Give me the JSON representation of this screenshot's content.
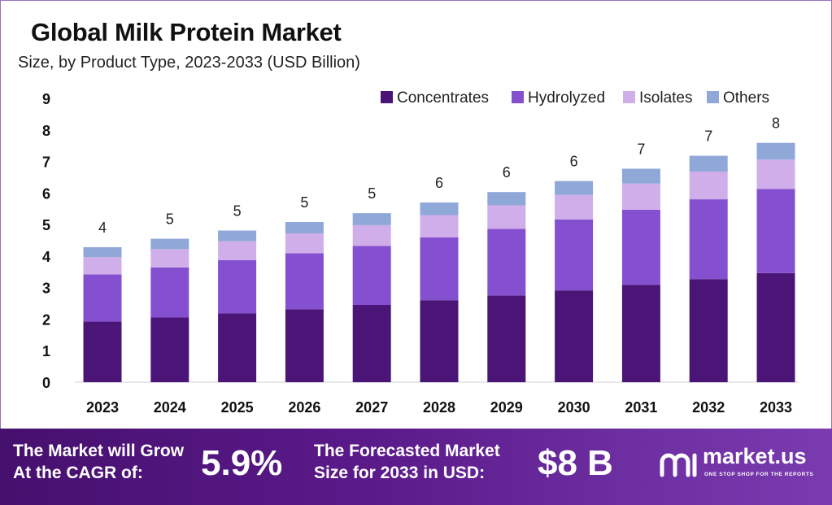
{
  "chart_data": {
    "type": "bar",
    "stacked": true,
    "title": "Global Milk Protein Market",
    "subtitle": "Size, by Product Type, 2023-2033 (USD Billion)",
    "xlabel": "",
    "ylabel": "",
    "ylim": [
      0,
      9
    ],
    "yticks": [
      "0",
      "1",
      "2",
      "3",
      "4",
      "5",
      "6",
      "7",
      "8",
      "9"
    ],
    "grid": false,
    "legend_position": "top-right",
    "categories": [
      "2023",
      "2024",
      "2025",
      "2026",
      "2027",
      "2028",
      "2029",
      "2030",
      "2031",
      "2032",
      "2033"
    ],
    "series": [
      {
        "name": "Concentrates",
        "color": "#4b1578",
        "values": [
          1.92,
          2.05,
          2.18,
          2.31,
          2.45,
          2.6,
          2.75,
          2.91,
          3.09,
          3.27,
          3.46
        ]
      },
      {
        "name": "Hydrolyzed",
        "color": "#8550cf",
        "values": [
          1.5,
          1.59,
          1.69,
          1.78,
          1.87,
          1.99,
          2.11,
          2.25,
          2.38,
          2.53,
          2.67
        ]
      },
      {
        "name": "Isolates",
        "color": "#cfaeea",
        "values": [
          0.55,
          0.58,
          0.6,
          0.63,
          0.66,
          0.71,
          0.75,
          0.78,
          0.83,
          0.88,
          0.93
        ]
      },
      {
        "name": "Others",
        "color": "#8fa8d8",
        "values": [
          0.31,
          0.33,
          0.34,
          0.36,
          0.38,
          0.4,
          0.42,
          0.44,
          0.47,
          0.5,
          0.53
        ]
      }
    ],
    "totals_labels": [
      "4",
      "5",
      "5",
      "5",
      "5",
      "6",
      "6",
      "6",
      "7",
      "7",
      "8"
    ]
  },
  "footer": {
    "cagr_label_line1": "The Market will Grow",
    "cagr_label_line2": "At the CAGR of:",
    "cagr_value": "5.9%",
    "forecast_label_line1": "The Forecasted Market",
    "forecast_label_line2": "Size for 2033 in USD:",
    "forecast_value": "$8 B",
    "brand_name": "market.us",
    "brand_tagline": "ONE STOP SHOP FOR THE REPORTS",
    "brand_icon": "market-us-logo-icon"
  }
}
